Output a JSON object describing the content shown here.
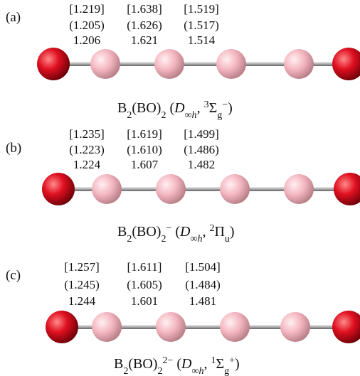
{
  "panels": [
    {
      "label": "(a)",
      "bonds": [
        [
          "[1.219]",
          "(1.205)",
          "1.206"
        ],
        [
          "[1.638]",
          "(1.626)",
          "1.621"
        ],
        [
          "[1.519]",
          "(1.517)",
          "1.514"
        ]
      ],
      "caption": [
        "B",
        "2",
        "(BO)",
        "2",
        " (",
        "D",
        "∞h",
        ", ",
        "3",
        "Σ",
        "g",
        "−",
        ")"
      ]
    },
    {
      "label": "(b)",
      "bonds": [
        [
          "[1.235]",
          "(1.223)",
          "1.224"
        ],
        [
          "[1.619]",
          "(1.610)",
          "1.607"
        ],
        [
          "[1.499]",
          "(1.486)",
          "1.482"
        ]
      ],
      "caption": [
        "B",
        "2",
        "(BO)",
        "2",
        "−",
        " (",
        "D",
        "∞h",
        ", ",
        "2",
        "Π",
        "u",
        ")"
      ]
    },
    {
      "label": "(c)",
      "bonds": [
        [
          "[1.257]",
          "(1.245)",
          "1.244"
        ],
        [
          "[1.611]",
          "(1.605)",
          "1.601"
        ],
        [
          "[1.504]",
          "(1.484)",
          "1.481"
        ]
      ],
      "caption": [
        "B",
        "2",
        "(BO)",
        "2",
        "2−",
        " (",
        "D",
        "∞h",
        ", ",
        "1",
        "Σ",
        "g",
        "+",
        ")"
      ]
    }
  ]
}
